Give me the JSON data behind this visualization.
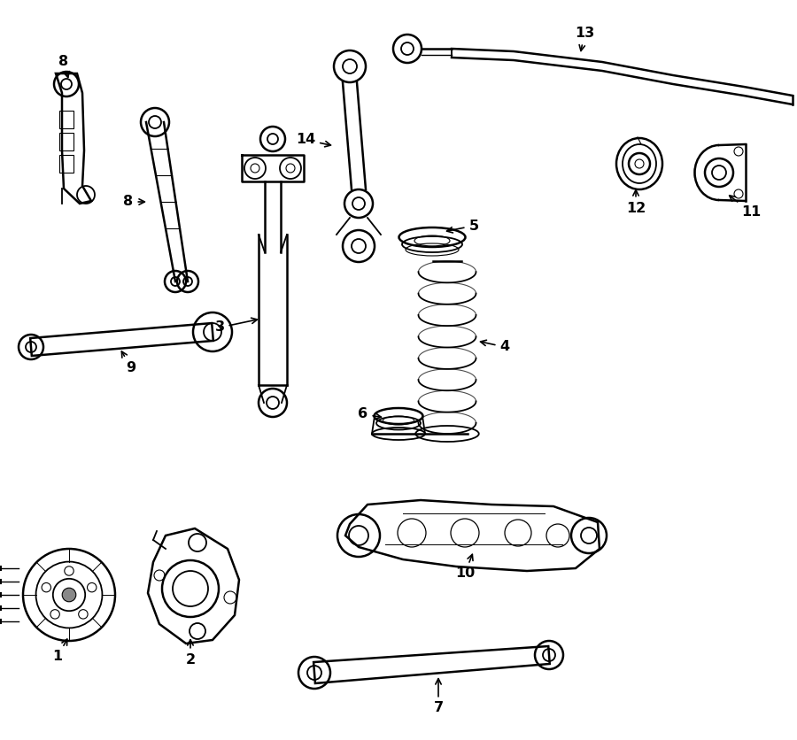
{
  "bg_color": "#ffffff",
  "line_color": "#000000",
  "figsize": [
    9.0,
    8.36
  ],
  "dpi": 100
}
